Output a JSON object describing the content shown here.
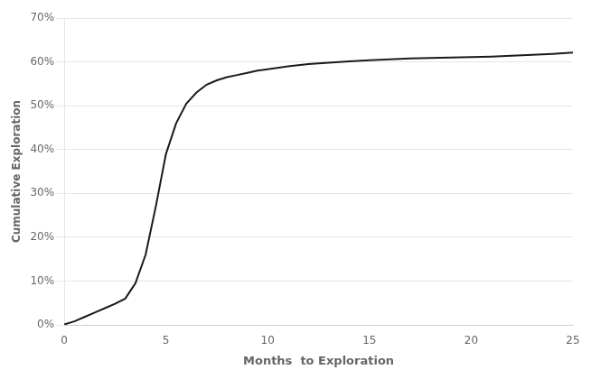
{
  "chart_data": {
    "type": "line",
    "xlabel": "Months  to Exploration",
    "ylabel": "Cumulative Exploration",
    "x": [
      0,
      0.5,
      1,
      1.5,
      2,
      2.5,
      3,
      3.0,
      3.5,
      4.0,
      4.5,
      5.0,
      5.5,
      6.0,
      6.5,
      7.0,
      7.5,
      8.0,
      8.5,
      9.0,
      9.5,
      10.0,
      11,
      12,
      13,
      14,
      15,
      16,
      17,
      18,
      19,
      20,
      21,
      22,
      23,
      24,
      25
    ],
    "values": [
      0.001,
      0.008,
      0.018,
      0.028,
      0.038,
      0.048,
      0.06,
      0.06,
      0.095,
      0.16,
      0.27,
      0.39,
      0.46,
      0.505,
      0.53,
      0.548,
      0.558,
      0.565,
      0.57,
      0.575,
      0.58,
      0.583,
      0.59,
      0.595,
      0.598,
      0.601,
      0.604,
      0.606,
      0.608,
      0.609,
      0.61,
      0.611,
      0.612,
      0.614,
      0.616,
      0.618,
      0.621
    ],
    "color": "#1a1a1a",
    "xlim": [
      0,
      25
    ],
    "ylim": [
      0,
      0.7
    ],
    "xticks": [
      0,
      5,
      10,
      15,
      20,
      25
    ],
    "yticks": [
      {
        "value": 0.0,
        "label": "0%"
      },
      {
        "value": 0.1,
        "label": "10%"
      },
      {
        "value": 0.2,
        "label": "20%"
      },
      {
        "value": 0.3,
        "label": "30%"
      },
      {
        "value": 0.4,
        "label": "40%"
      },
      {
        "value": 0.5,
        "label": "50%"
      },
      {
        "value": 0.6,
        "label": "60%"
      },
      {
        "value": 0.7,
        "label": "70%"
      }
    ],
    "grid": "y"
  }
}
